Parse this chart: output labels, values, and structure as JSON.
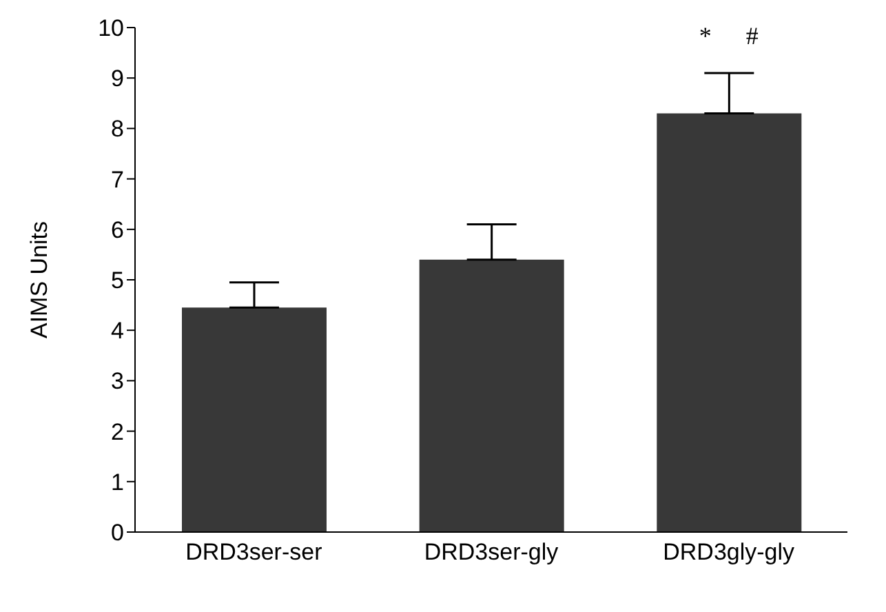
{
  "chart_data": {
    "type": "bar",
    "ylabel": "AIMS Units",
    "categories": [
      "DRD3ser-ser",
      "DRD3ser-gly",
      "DRD3gly-gly"
    ],
    "values": [
      4.45,
      5.4,
      8.3
    ],
    "errors": [
      [
        4.45,
        4.95
      ],
      [
        5.4,
        6.1
      ],
      [
        8.3,
        9.1
      ]
    ],
    "color": "#383838",
    "ylim": [
      0,
      10
    ],
    "yticks": [
      0,
      1,
      2,
      3,
      4,
      5,
      6,
      7,
      8,
      9,
      10
    ],
    "grid": false,
    "annotations": [
      "*",
      "#"
    ]
  }
}
